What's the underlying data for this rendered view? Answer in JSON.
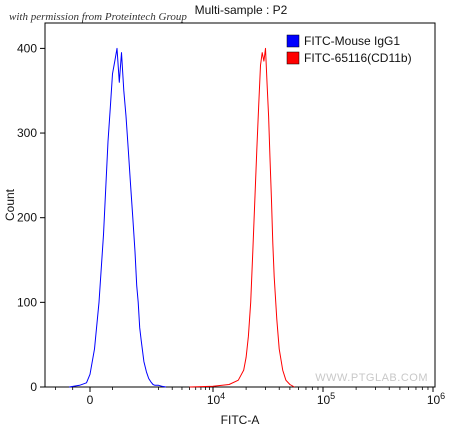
{
  "credit": "with permission from Proteintech Group",
  "watermark": "WWW.PTGLAB.COM",
  "chart_data": {
    "type": "line",
    "title": "Multi-sample : P2",
    "xlabel": "FITC-A",
    "ylabel": "Count",
    "ylim": [
      0,
      430
    ],
    "y_ticks": [
      0,
      100,
      200,
      300,
      400
    ],
    "x_ticks": [
      {
        "value": 0,
        "label": "0"
      },
      {
        "value": 10000,
        "label": "10",
        "exp": "4"
      },
      {
        "value": 100000,
        "label": "10",
        "exp": "5"
      },
      {
        "value": 1000000,
        "label": "10",
        "exp": "6"
      }
    ],
    "legend_position": "top-right",
    "series": [
      {
        "name": "FITC-Mouse IgG1",
        "color": "#0000ff",
        "x": [
          -600,
          -300,
          -100,
          0,
          100,
          200,
          300,
          400,
          450,
          500,
          550,
          600,
          650,
          700,
          750,
          800,
          850,
          900,
          950,
          1000,
          1050,
          1100,
          1150,
          1200,
          1300,
          1400,
          1500,
          1600,
          1700,
          1800,
          2000,
          2200,
          2500
        ],
        "values": [
          0,
          2,
          5,
          15,
          45,
          100,
          180,
          290,
          330,
          370,
          385,
          400,
          360,
          395,
          350,
          320,
          280,
          240,
          200,
          160,
          120,
          100,
          70,
          55,
          30,
          18,
          10,
          6,
          3,
          2,
          2,
          1,
          0
        ]
      },
      {
        "name": "FITC-65116(CD11b)",
        "color": "#ff0000",
        "x": [
          5000,
          10000,
          14000,
          17000,
          19000,
          20000,
          21000,
          22000,
          23000,
          24000,
          25000,
          26000,
          27000,
          28000,
          29000,
          30000,
          31000,
          32000,
          33000,
          34000,
          35000,
          36000,
          38000,
          40000,
          43000,
          46000,
          50000,
          55000
        ],
        "values": [
          0,
          1,
          3,
          8,
          20,
          35,
          60,
          100,
          160,
          220,
          280,
          330,
          380,
          395,
          385,
          400,
          360,
          320,
          270,
          220,
          170,
          130,
          80,
          45,
          20,
          8,
          3,
          0
        ]
      }
    ]
  }
}
